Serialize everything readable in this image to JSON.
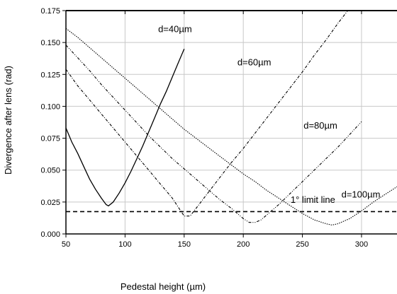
{
  "chart_data": {
    "type": "line",
    "title": "",
    "xlabel": "Pedestal height (µm)",
    "ylabel": "Divergence after lens (rad)",
    "xlim": [
      50,
      330
    ],
    "ylim": [
      0,
      0.175
    ],
    "xticks": [
      "50",
      "100",
      "150",
      "200",
      "250",
      "300"
    ],
    "yticks": [
      "0.000",
      "0.025",
      "0.050",
      "0.075",
      "0.100",
      "0.125",
      "0.150",
      "0.175"
    ],
    "grid": true,
    "series": [
      {
        "name": "d=40µm",
        "style": "solid",
        "x": [
          50,
          55,
          60,
          65,
          70,
          75,
          80,
          84,
          86,
          90,
          95,
          100,
          105,
          110,
          115,
          120,
          125,
          130,
          135,
          140,
          145,
          150
        ],
        "y": [
          0.083,
          0.072,
          0.063,
          0.053,
          0.043,
          0.035,
          0.028,
          0.023,
          0.022,
          0.025,
          0.032,
          0.04,
          0.049,
          0.059,
          0.069,
          0.08,
          0.091,
          0.102,
          0.112,
          0.123,
          0.134,
          0.145
        ]
      },
      {
        "name": "d=60µm",
        "style": "dash-dot",
        "x": [
          50,
          60,
          70,
          80,
          90,
          100,
          110,
          120,
          130,
          140,
          145,
          150,
          155,
          160,
          170,
          180,
          190,
          200,
          210,
          220,
          230,
          240,
          250,
          260,
          270,
          280,
          290
        ],
        "y": [
          0.129,
          0.116,
          0.105,
          0.094,
          0.083,
          0.072,
          0.061,
          0.05,
          0.039,
          0.028,
          0.021,
          0.014,
          0.014,
          0.02,
          0.032,
          0.044,
          0.056,
          0.067,
          0.079,
          0.091,
          0.103,
          0.115,
          0.127,
          0.14,
          0.152,
          0.165,
          0.177
        ]
      },
      {
        "name": "d=80µm",
        "style": "dash-dot-dot",
        "x": [
          50,
          60,
          70,
          80,
          90,
          100,
          110,
          120,
          130,
          140,
          150,
          160,
          170,
          180,
          190,
          200,
          205,
          210,
          215,
          220,
          230,
          240,
          250,
          260,
          270,
          280,
          290,
          300
        ],
        "y": [
          0.148,
          0.138,
          0.128,
          0.117,
          0.107,
          0.097,
          0.087,
          0.077,
          0.068,
          0.059,
          0.051,
          0.043,
          0.035,
          0.027,
          0.02,
          0.012,
          0.009,
          0.009,
          0.011,
          0.015,
          0.023,
          0.032,
          0.041,
          0.05,
          0.059,
          0.068,
          0.078,
          0.088
        ]
      },
      {
        "name": "d=100µm",
        "style": "dotted",
        "x": [
          50,
          60,
          70,
          80,
          90,
          100,
          110,
          120,
          130,
          140,
          150,
          160,
          170,
          180,
          190,
          200,
          210,
          220,
          230,
          240,
          250,
          260,
          270,
          275,
          280,
          290,
          300,
          310,
          320,
          330
        ],
        "y": [
          0.161,
          0.154,
          0.146,
          0.138,
          0.13,
          0.122,
          0.114,
          0.106,
          0.098,
          0.09,
          0.082,
          0.075,
          0.068,
          0.061,
          0.054,
          0.047,
          0.041,
          0.034,
          0.028,
          0.022,
          0.016,
          0.011,
          0.008,
          0.007,
          0.008,
          0.012,
          0.018,
          0.025,
          0.031,
          0.037
        ]
      }
    ],
    "reference_lines": [
      {
        "label": "1° limit line",
        "y": 0.0175,
        "style": "dashed"
      }
    ],
    "annotations": [
      {
        "text": "d=40µm",
        "x": 128,
        "y": 0.158
      },
      {
        "text": "d=60µm",
        "x": 195,
        "y": 0.132
      },
      {
        "text": "d=80µm",
        "x": 251,
        "y": 0.0825
      },
      {
        "text": "d=100µm",
        "x": 283,
        "y": 0.0285
      },
      {
        "text": "1° limit line",
        "x": 240,
        "y": 0.0245
      }
    ]
  }
}
